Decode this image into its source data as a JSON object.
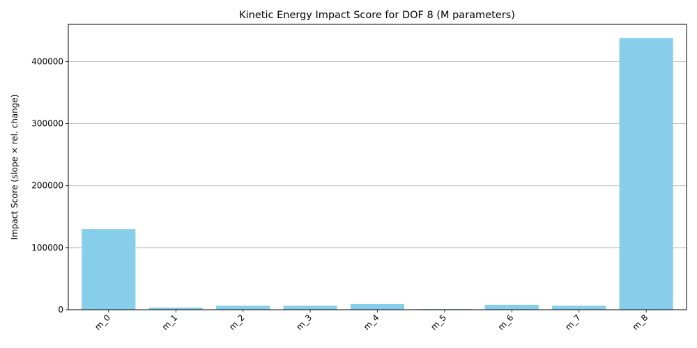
{
  "chart_data": {
    "type": "bar",
    "title": "Kinetic Energy Impact Score for DOF 8 (M parameters)",
    "xlabel": "",
    "ylabel": "Impact Score (slope × rel. change)",
    "categories": [
      "m_0",
      "m_1",
      "m_2",
      "m_3",
      "m_4",
      "m_5",
      "m_6",
      "m_7",
      "m_8"
    ],
    "values": [
      130000,
      3500,
      6500,
      6500,
      9000,
      1000,
      8000,
      6500,
      438000
    ],
    "ylim": [
      0,
      460000
    ],
    "yticks": [
      0,
      100000,
      200000,
      300000,
      400000
    ],
    "ytick_labels": [
      "0",
      "100000",
      "200000",
      "300000",
      "400000"
    ],
    "grid": "y",
    "bar_color": "#87CEEB"
  }
}
